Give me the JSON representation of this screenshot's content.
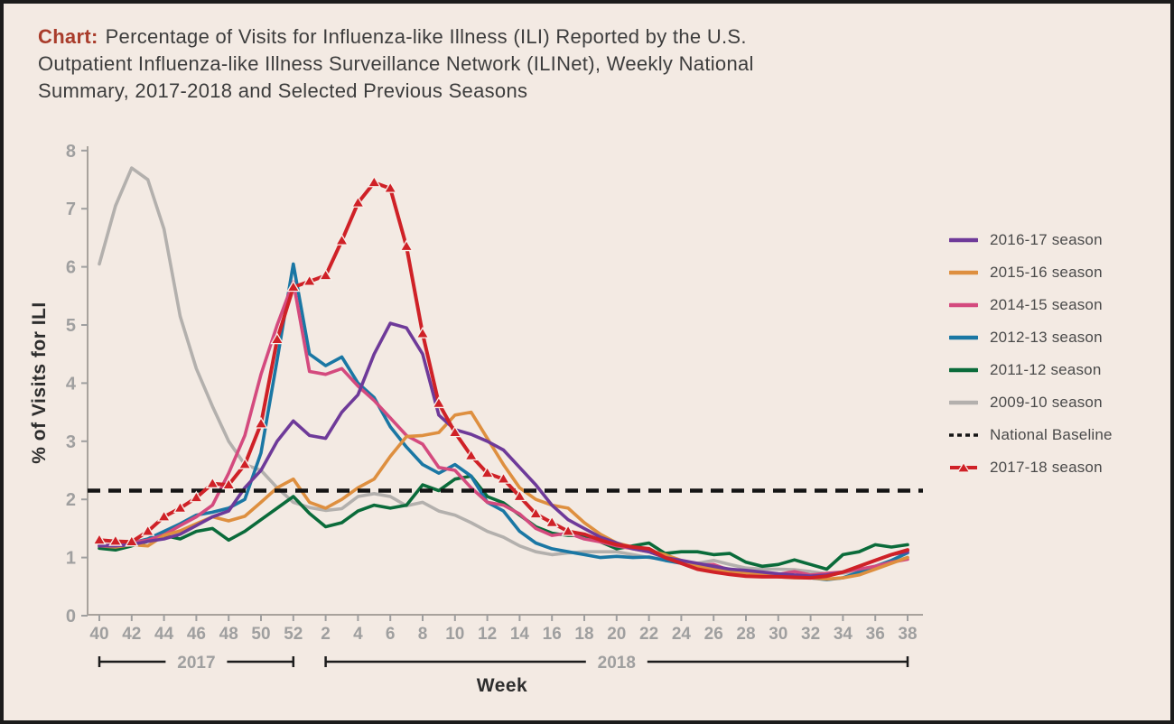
{
  "title": {
    "prefix": "Chart:",
    "lines": [
      "Percentage of Visits for Influenza-like Illness (ILI) Reported by the U.S.",
      "Outpatient Influenza-like Illness Surveillance Network (ILINet), Weekly National",
      "Summary, 2017-2018 and Selected Previous Seasons"
    ]
  },
  "axes": {
    "y_label": "% of Visits for ILI",
    "x_label": "Week",
    "y_ticks": [
      0,
      1,
      2,
      3,
      4,
      5,
      6,
      7,
      8
    ],
    "year_brackets": [
      {
        "label": "2017",
        "start_week_index": 0,
        "end_week_index": 12
      },
      {
        "label": "2018",
        "start_week_index": 14,
        "end_week_index": 50
      }
    ]
  },
  "legend": [
    {
      "label": "2016-17 season",
      "color": "#6e3a99",
      "style": "solid"
    },
    {
      "label": "2015-16 season",
      "color": "#de8f3f",
      "style": "solid"
    },
    {
      "label": "2014-15 season",
      "color": "#d44a7e",
      "style": "solid"
    },
    {
      "label": "2012-13 season",
      "color": "#1a77a4",
      "style": "solid"
    },
    {
      "label": "2011-12 season",
      "color": "#0a6b3a",
      "style": "solid"
    },
    {
      "label": "2009-10 season",
      "color": "#b3b0ad",
      "style": "solid"
    },
    {
      "label": "National Baseline",
      "color": "#141414",
      "style": "dashed"
    },
    {
      "label": "2017-18 season",
      "color": "#cf2127",
      "style": "triangle-line"
    }
  ],
  "chart_data": {
    "type": "line",
    "title": "Percentage of Visits for Influenza-like Illness (ILI) Reported by the U.S. Outpatient Influenza-like Illness Surveillance Network (ILINet), Weekly National Summary, 2017-2018 and Selected Previous Seasons",
    "xlabel": "Week",
    "ylabel": "% of Visits for ILI",
    "ylim": [
      0,
      8
    ],
    "grid": false,
    "legend_position": "right",
    "x_weeks": [
      "40",
      "41",
      "42",
      "43",
      "44",
      "45",
      "46",
      "47",
      "48",
      "49",
      "50",
      "51",
      "52",
      "1",
      "2",
      "3",
      "4",
      "5",
      "6",
      "7",
      "8",
      "9",
      "10",
      "11",
      "12",
      "13",
      "14",
      "15",
      "16",
      "17",
      "18",
      "19",
      "20",
      "21",
      "22",
      "23",
      "24",
      "25",
      "26",
      "27",
      "28",
      "29",
      "30",
      "31",
      "32",
      "33",
      "34",
      "35",
      "36",
      "37",
      "38"
    ],
    "x_tick_label_every": 2,
    "baseline": {
      "name": "National Baseline",
      "value": 2.15,
      "color": "#141414",
      "style": "dashed"
    },
    "series": [
      {
        "name": "2009-10 season",
        "color": "#b3b0ad",
        "values": [
          6.05,
          7.05,
          7.7,
          7.5,
          6.65,
          5.15,
          4.25,
          3.6,
          3.0,
          2.6,
          2.5,
          2.2,
          1.95,
          1.86,
          1.81,
          1.84,
          2.05,
          2.1,
          2.05,
          1.89,
          1.95,
          1.8,
          1.73,
          1.6,
          1.45,
          1.35,
          1.2,
          1.1,
          1.05,
          1.08,
          1.1,
          1.1,
          1.1,
          1.05,
          1.0,
          0.97,
          0.93,
          0.9,
          0.95,
          0.88,
          0.82,
          0.8,
          0.8,
          0.79,
          0.76,
          0.72,
          0.73,
          0.78,
          0.85,
          0.93,
          1.0
        ]
      },
      {
        "name": "2011-12 season",
        "color": "#0a6b3a",
        "values": [
          1.16,
          1.13,
          1.2,
          1.28,
          1.38,
          1.32,
          1.45,
          1.5,
          1.3,
          1.45,
          1.65,
          1.85,
          2.05,
          1.76,
          1.53,
          1.6,
          1.8,
          1.9,
          1.85,
          1.9,
          2.25,
          2.15,
          2.35,
          2.4,
          2.05,
          1.94,
          1.73,
          1.53,
          1.42,
          1.38,
          1.38,
          1.27,
          1.15,
          1.2,
          1.25,
          1.07,
          1.1,
          1.1,
          1.05,
          1.07,
          0.92,
          0.85,
          0.88,
          0.96,
          0.88,
          0.8,
          1.05,
          1.1,
          1.22,
          1.18,
          1.22
        ]
      },
      {
        "name": "2012-13 season",
        "color": "#1a77a4",
        "values": [
          1.2,
          1.22,
          1.25,
          1.32,
          1.45,
          1.58,
          1.73,
          1.78,
          1.85,
          2.0,
          2.8,
          4.4,
          6.05,
          4.5,
          4.3,
          4.45,
          4.0,
          3.75,
          3.25,
          2.9,
          2.6,
          2.45,
          2.6,
          2.4,
          1.95,
          1.8,
          1.45,
          1.25,
          1.15,
          1.1,
          1.05,
          1.0,
          1.02,
          1.0,
          1.01,
          0.95,
          0.9,
          0.85,
          0.82,
          0.8,
          0.75,
          0.72,
          0.7,
          0.68,
          0.65,
          0.62,
          0.65,
          0.75,
          0.85,
          0.95,
          1.08
        ]
      },
      {
        "name": "2014-15 season",
        "color": "#d44a7e",
        "values": [
          1.2,
          1.22,
          1.26,
          1.3,
          1.39,
          1.55,
          1.7,
          1.9,
          2.45,
          3.1,
          4.15,
          5.0,
          5.74,
          4.2,
          4.15,
          4.25,
          3.95,
          3.7,
          3.4,
          3.1,
          2.95,
          2.55,
          2.5,
          2.2,
          1.95,
          1.9,
          1.75,
          1.5,
          1.38,
          1.42,
          1.32,
          1.27,
          1.2,
          1.15,
          1.1,
          1.0,
          0.93,
          0.87,
          0.88,
          0.78,
          0.76,
          0.73,
          0.71,
          0.76,
          0.7,
          0.73,
          0.75,
          0.8,
          0.85,
          0.92,
          0.97
        ]
      },
      {
        "name": "2015-16 season",
        "color": "#de8f3f",
        "values": [
          1.2,
          1.18,
          1.22,
          1.2,
          1.38,
          1.46,
          1.58,
          1.7,
          1.63,
          1.71,
          1.95,
          2.2,
          2.35,
          1.95,
          1.85,
          2.0,
          2.2,
          2.35,
          2.74,
          3.08,
          3.1,
          3.15,
          3.45,
          3.5,
          3.05,
          2.6,
          2.2,
          2.0,
          1.9,
          1.85,
          1.6,
          1.4,
          1.25,
          1.18,
          1.12,
          1.05,
          0.95,
          0.85,
          0.8,
          0.75,
          0.72,
          0.7,
          0.67,
          0.65,
          0.65,
          0.63,
          0.65,
          0.7,
          0.8,
          0.9,
          1.0
        ]
      },
      {
        "name": "2016-17 season",
        "color": "#6e3a99",
        "values": [
          1.2,
          1.2,
          1.22,
          1.28,
          1.32,
          1.4,
          1.55,
          1.7,
          1.8,
          2.2,
          2.5,
          3.0,
          3.35,
          3.1,
          3.05,
          3.5,
          3.8,
          4.5,
          5.03,
          4.95,
          4.5,
          3.45,
          3.2,
          3.12,
          3.0,
          2.85,
          2.55,
          2.25,
          1.9,
          1.65,
          1.5,
          1.35,
          1.25,
          1.15,
          1.1,
          1.0,
          0.95,
          0.9,
          0.85,
          0.8,
          0.78,
          0.75,
          0.72,
          0.7,
          0.68,
          0.7,
          0.75,
          0.85,
          0.95,
          1.05,
          1.1
        ]
      },
      {
        "name": "2017-18 season",
        "color": "#cf2127",
        "marker": "triangle",
        "marker_until_index": 29,
        "values": [
          1.3,
          1.28,
          1.27,
          1.45,
          1.7,
          1.85,
          2.03,
          2.27,
          2.25,
          2.6,
          3.3,
          4.75,
          5.65,
          5.75,
          5.85,
          6.45,
          7.1,
          7.45,
          7.35,
          6.35,
          4.85,
          3.65,
          3.15,
          2.75,
          2.45,
          2.35,
          2.05,
          1.75,
          1.6,
          1.45,
          1.4,
          1.3,
          1.22,
          1.18,
          1.15,
          1.0,
          0.9,
          0.8,
          0.75,
          0.71,
          0.68,
          0.67,
          0.67,
          0.66,
          0.65,
          0.68,
          0.75,
          0.85,
          0.95,
          1.05,
          1.13
        ]
      }
    ]
  },
  "colors": {
    "background": "#f3eae3",
    "frame_border": "#1c1c1c",
    "title_prefix": "#a93c2b",
    "title_text": "#3d3d3d",
    "axis_line": "#a8a29c",
    "tick_label": "#9f9f9f",
    "axis_title": "#2d2d2d",
    "legend_text": "#4a4a4a"
  }
}
